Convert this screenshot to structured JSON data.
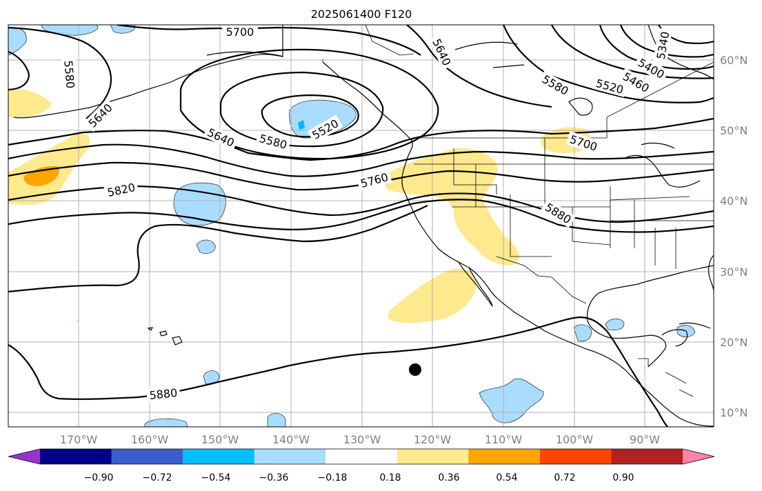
{
  "title": "2025061400 F120",
  "lon_labels": [
    "170°W",
    "160°W",
    "150°W",
    "140°W",
    "130°W",
    "120°W",
    "110°W",
    "100°W",
    "90°W"
  ],
  "lat_labels": [
    "60°N",
    "50°N",
    "40°N",
    "30°N",
    "20°N",
    "10°N"
  ],
  "contour_labels": [
    "5700",
    "5640",
    "5580",
    "5340",
    "5400",
    "5460",
    "5520",
    "5580",
    "5640",
    "5580",
    "5520",
    "5640",
    "5700",
    "5760",
    "5820",
    "5880",
    "5880"
  ],
  "colorbar": {
    "ticks": [
      "−0.90",
      "−0.72",
      "−0.54",
      "−0.36",
      "−0.18",
      "0.18",
      "0.36",
      "0.54",
      "0.72",
      "0.90"
    ],
    "colors": [
      "#9932cc",
      "#00008b",
      "#3a5fcd",
      "#00bfff",
      "#aadcff",
      "#ffffff",
      "#fde98e",
      "#ffa500",
      "#ff4500",
      "#b22222",
      "#ff85a8"
    ]
  },
  "marker": "storm-position"
}
